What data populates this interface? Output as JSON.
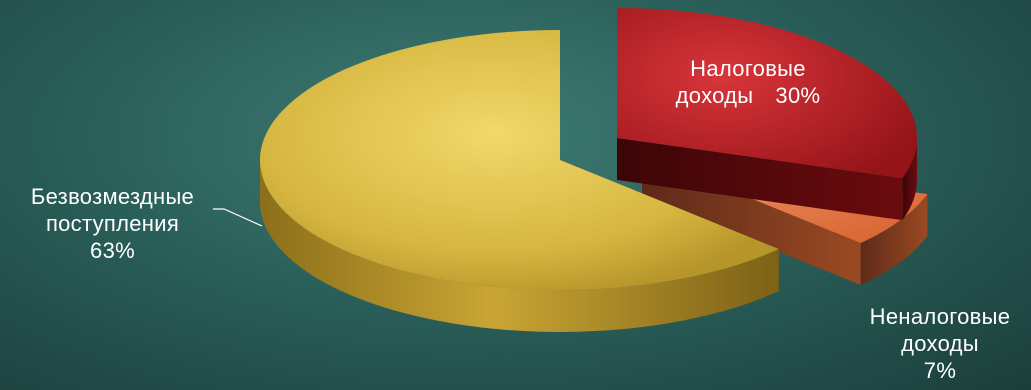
{
  "chart_data": {
    "type": "pie",
    "categories": [
      "Безвозмездные поступления",
      "Налоговые доходы",
      "Неналоговые доходы"
    ],
    "values": [
      63,
      30,
      7
    ],
    "value_suffix": "%",
    "three_d": true,
    "exploded": true,
    "slice_labels": [
      {
        "lines": [
          "Безвозмездные",
          "поступления"
        ],
        "value": "63%"
      },
      {
        "lines": [
          "Налоговые",
          "доходы"
        ],
        "value": "30%"
      },
      {
        "lines": [
          "Неналоговые",
          "доходы"
        ],
        "value": "7%"
      }
    ],
    "colors": [
      "#d4b53a",
      "#b0191c",
      "#e2713c"
    ],
    "background": "#2e6660"
  }
}
